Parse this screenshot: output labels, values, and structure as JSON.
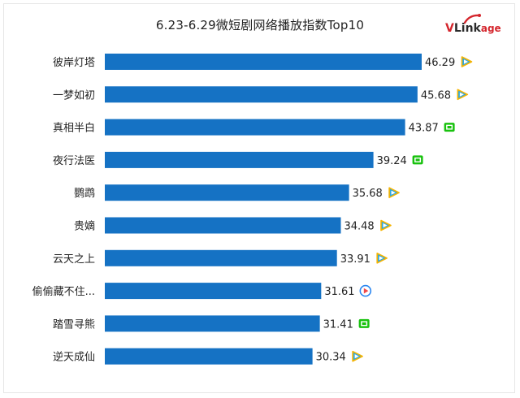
{
  "title": "6.23-6.29微短剧网络播放指数Top10",
  "brand": {
    "prefix": "V",
    "middle": "Link",
    "suffix": "age",
    "color": "#d4262d"
  },
  "colors": {
    "bar": "#1572c4",
    "label": "#222222",
    "tencent": "#2ea7e0",
    "iqiyi": "#19c20f",
    "youku": "#2a86f0"
  },
  "chart_data": {
    "type": "bar",
    "orientation": "horizontal",
    "title": "6.23-6.29微短剧网络播放指数Top10",
    "categories": [
      "彼岸灯塔",
      "一梦如初",
      "真相半白",
      "夜行法医",
      "鹦鹉",
      "贵嫡",
      "云天之上",
      "偷偷藏不住...",
      "踏雪寻熊",
      "逆天成仙"
    ],
    "values": [
      46.29,
      45.68,
      43.87,
      39.24,
      35.68,
      34.48,
      33.91,
      31.61,
      31.41,
      30.34
    ],
    "value_labels": [
      "46.29",
      "45.68",
      "43.87",
      "39.24",
      "35.68",
      "34.48",
      "33.91",
      "31.61",
      "31.41",
      "30.34"
    ],
    "platform_icons": [
      "tencent-video-icon",
      "tencent-video-icon",
      "iqiyi-icon",
      "iqiyi-icon",
      "tencent-video-icon",
      "tencent-video-icon",
      "tencent-video-icon",
      "youku-icon",
      "iqiyi-icon",
      "tencent-video-icon"
    ],
    "xlim": [
      0,
      46.29
    ],
    "grid": false,
    "legend": "none"
  }
}
